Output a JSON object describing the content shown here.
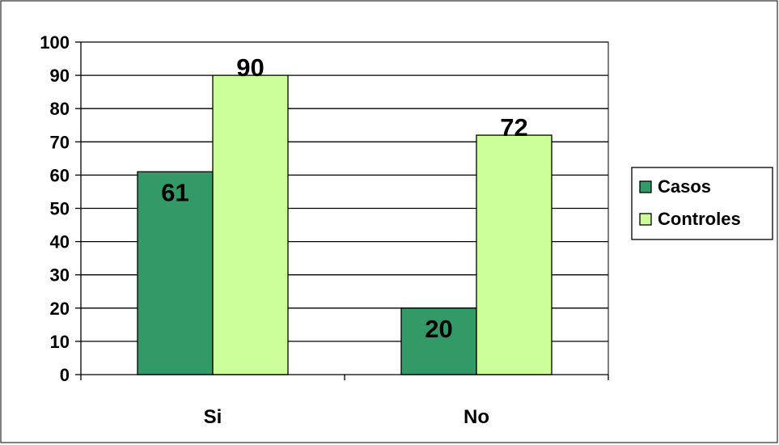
{
  "chart_data": {
    "type": "bar",
    "categories": [
      "Si",
      "No"
    ],
    "series": [
      {
        "name": "Casos",
        "values": [
          61,
          20
        ],
        "color": "#339966"
      },
      {
        "name": "Controles",
        "values": [
          90,
          72
        ],
        "color": "#CCFF99"
      }
    ],
    "ylim": [
      0,
      100
    ],
    "yticks": [
      0,
      10,
      20,
      30,
      40,
      50,
      60,
      70,
      80,
      90,
      100
    ],
    "grid": true,
    "legend_position": "right",
    "data_labels": true
  }
}
